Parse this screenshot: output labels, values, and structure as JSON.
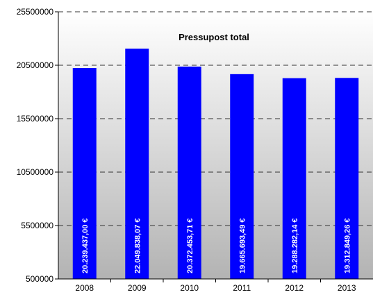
{
  "chart_data": {
    "type": "bar",
    "title": "Pressupost total",
    "categories": [
      "2008",
      "2009",
      "2010",
      "2011",
      "2012",
      "2013"
    ],
    "values": [
      20239437.0,
      22049838.07,
      20372453.71,
      19665693.49,
      19288282.14,
      19312849.26
    ],
    "data_labels": [
      "20.239.437,00 €",
      "22.049.838,07 €",
      "20.372.453,71 €",
      "19.665.693,49 €",
      "19.288.282,14 €",
      "19.312.849,26 €"
    ],
    "y_ticks": [
      500000,
      5500000,
      10500000,
      15500000,
      20500000,
      25500000
    ],
    "y_tick_labels": [
      "500000",
      "5500000",
      "10500000",
      "15500000",
      "20500000",
      "25500000"
    ],
    "ylim": [
      500000,
      25500000
    ],
    "xlabel": "",
    "ylabel": "",
    "grid": true,
    "legend": false,
    "bar_color": "#0000FF",
    "label_color": "#FFFFFF",
    "grid_color": "#333333",
    "background_gradient": [
      "#FFFFFF",
      "#B3B3B3"
    ]
  }
}
